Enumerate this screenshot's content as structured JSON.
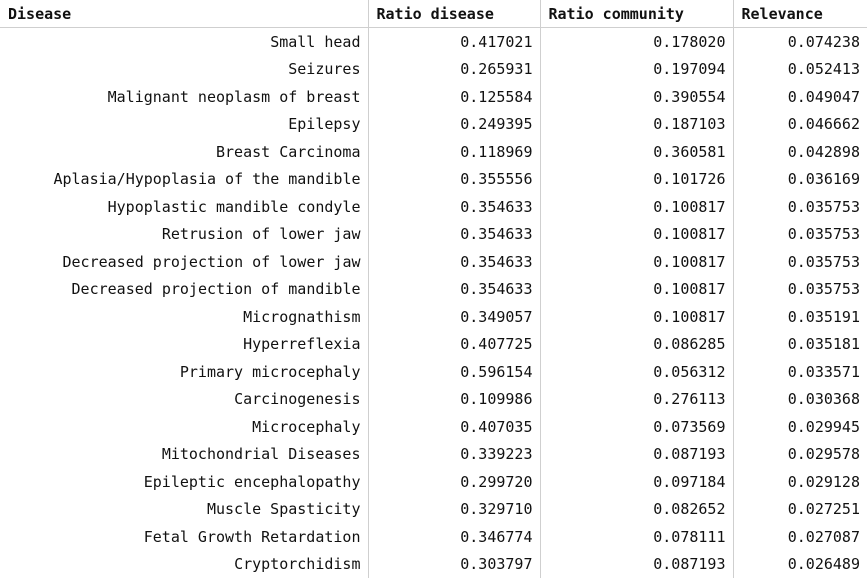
{
  "table": {
    "headers": [
      "Disease",
      "Ratio disease",
      "Ratio community",
      "Relevance"
    ],
    "rows": [
      [
        "Small head",
        "0.417021",
        "0.178020",
        "0.074238"
      ],
      [
        "Seizures",
        "0.265931",
        "0.197094",
        "0.052413"
      ],
      [
        "Malignant neoplasm of breast",
        "0.125584",
        "0.390554",
        "0.049047"
      ],
      [
        "Epilepsy",
        "0.249395",
        "0.187103",
        "0.046662"
      ],
      [
        "Breast Carcinoma",
        "0.118969",
        "0.360581",
        "0.042898"
      ],
      [
        "Aplasia/Hypoplasia of the mandible",
        "0.355556",
        "0.101726",
        "0.036169"
      ],
      [
        "Hypoplastic mandible condyle",
        "0.354633",
        "0.100817",
        "0.035753"
      ],
      [
        "Retrusion of lower jaw",
        "0.354633",
        "0.100817",
        "0.035753"
      ],
      [
        "Decreased projection of lower jaw",
        "0.354633",
        "0.100817",
        "0.035753"
      ],
      [
        "Decreased projection of mandible",
        "0.354633",
        "0.100817",
        "0.035753"
      ],
      [
        "Micrognathism",
        "0.349057",
        "0.100817",
        "0.035191"
      ],
      [
        "Hyperreflexia",
        "0.407725",
        "0.086285",
        "0.035181"
      ],
      [
        "Primary microcephaly",
        "0.596154",
        "0.056312",
        "0.033571"
      ],
      [
        "Carcinogenesis",
        "0.109986",
        "0.276113",
        "0.030368"
      ],
      [
        "Microcephaly",
        "0.407035",
        "0.073569",
        "0.029945"
      ],
      [
        "Mitochondrial Diseases",
        "0.339223",
        "0.087193",
        "0.029578"
      ],
      [
        "Epileptic encephalopathy",
        "0.299720",
        "0.097184",
        "0.029128"
      ],
      [
        "Muscle Spasticity",
        "0.329710",
        "0.082652",
        "0.027251"
      ],
      [
        "Fetal Growth Retardation",
        "0.346774",
        "0.078111",
        "0.027087"
      ],
      [
        "Cryptorchidism",
        "0.303797",
        "0.087193",
        "0.026489"
      ]
    ]
  }
}
